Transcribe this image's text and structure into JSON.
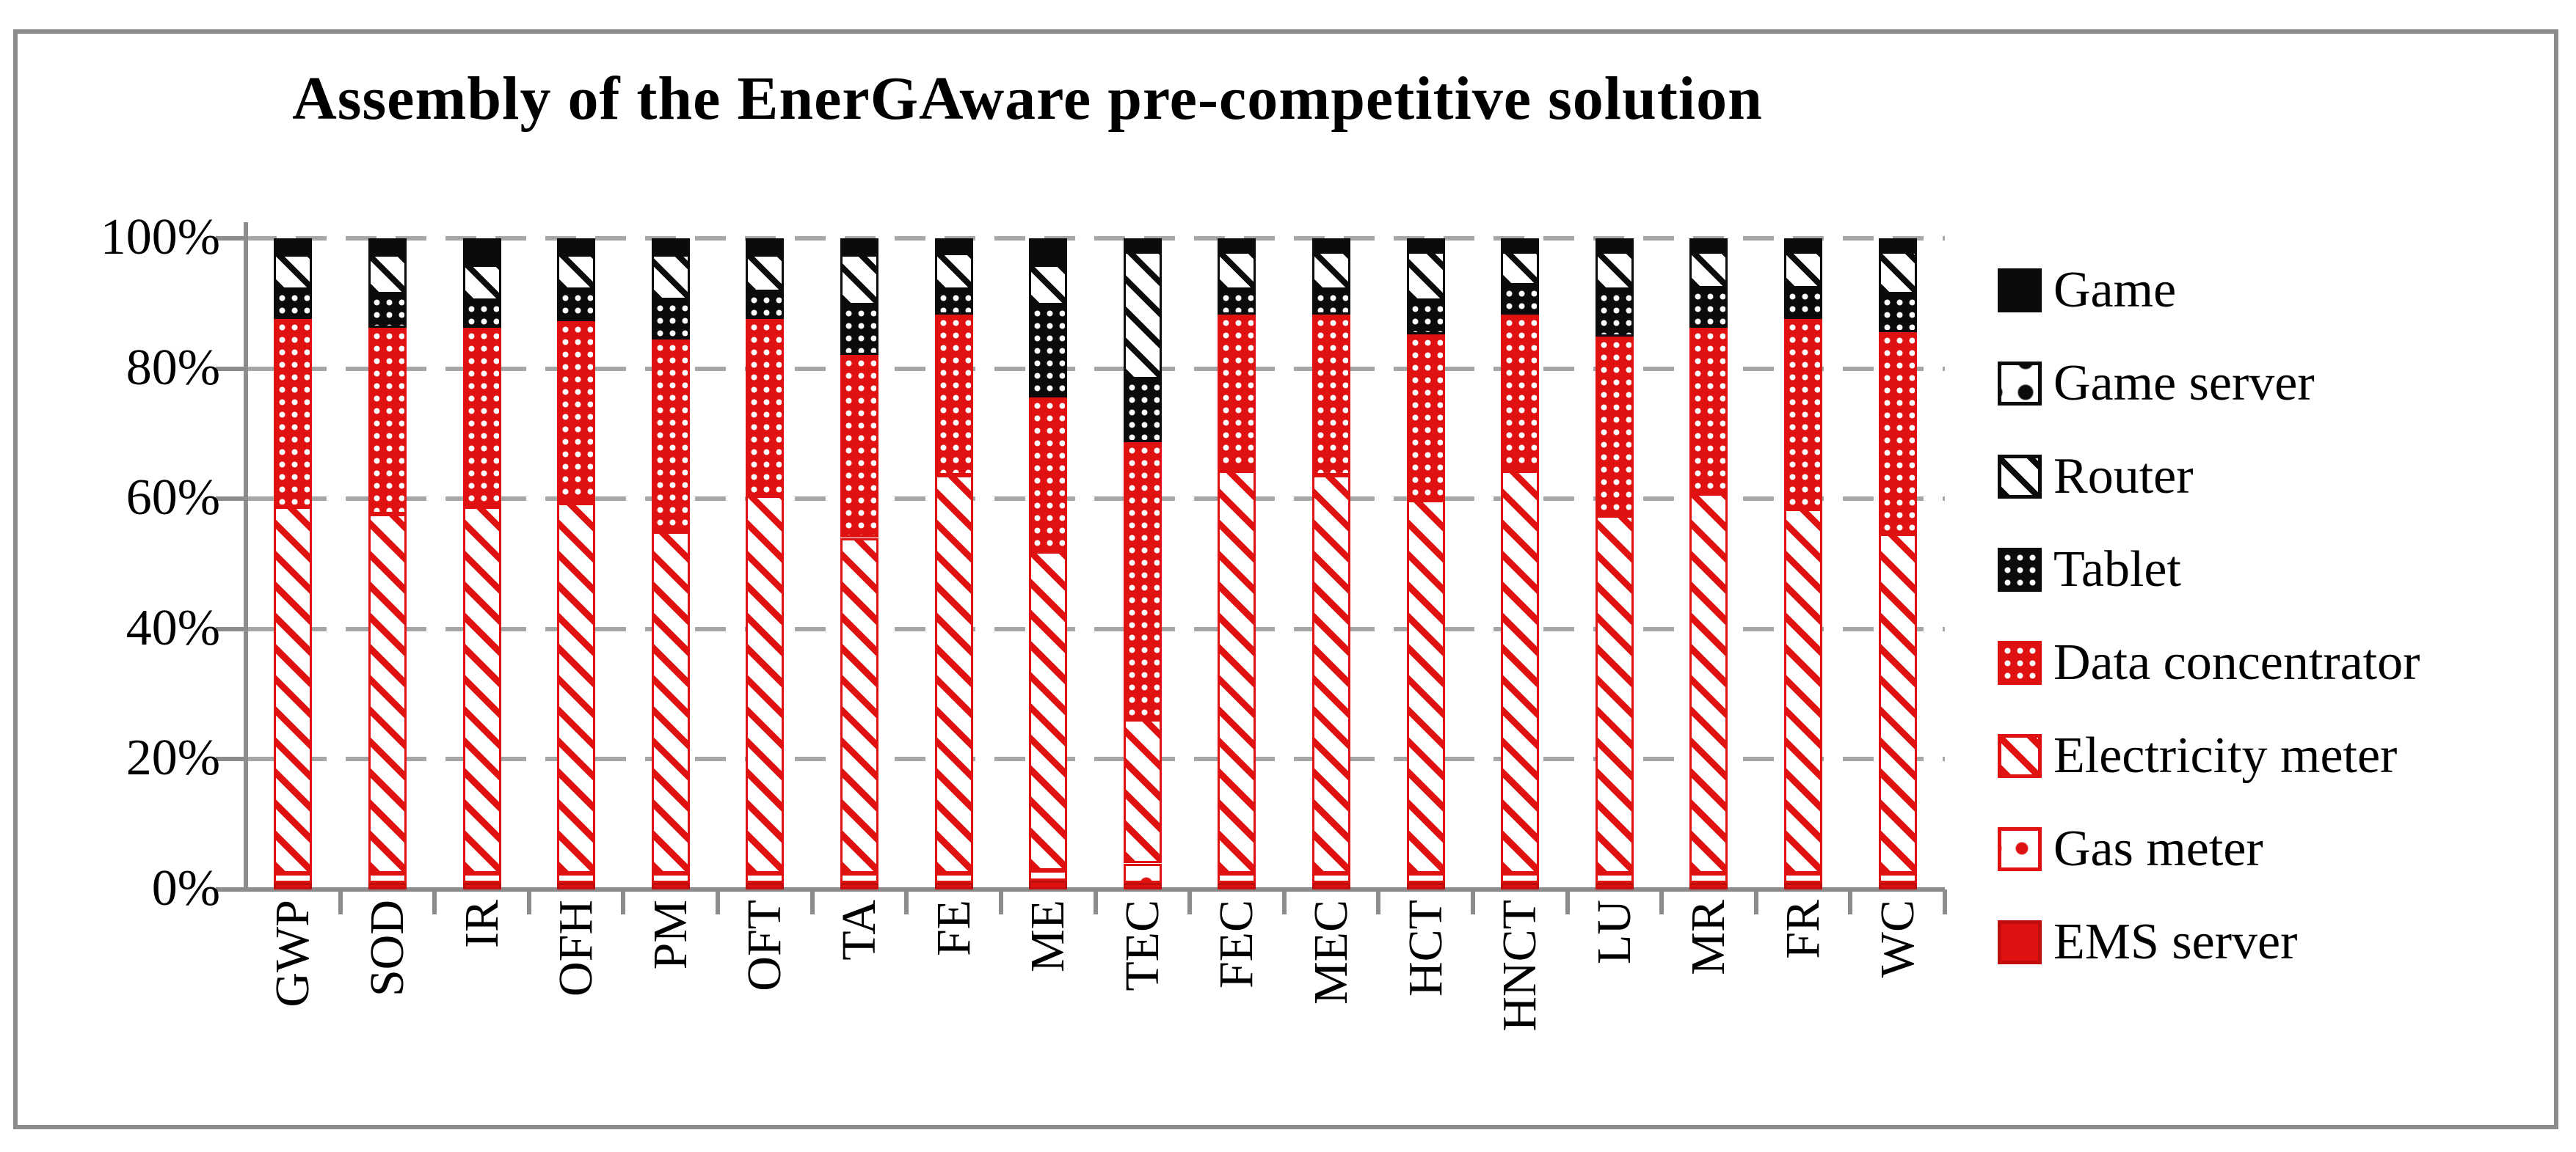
{
  "title": "Assembly of the EnerGAware pre-competitive solution",
  "colors": {
    "red": "#e01111",
    "black": "#0b0b0b",
    "gridline_gray": "#a6a6a6",
    "axis_gray": "#8c8c8c",
    "background": "#ffffff"
  },
  "y_axis": {
    "min": 0,
    "max": 100,
    "step": 20,
    "tick_labels": [
      "0%",
      "20%",
      "40%",
      "60%",
      "80%",
      "100%"
    ]
  },
  "legend": [
    {
      "label": "Game",
      "pattern": "solid-black"
    },
    {
      "label": "Game server",
      "pattern": "sparse-black"
    },
    {
      "label": "Router",
      "pattern": "diag-black"
    },
    {
      "label": "Tablet",
      "pattern": "dots-black"
    },
    {
      "label": "Data concentrator",
      "pattern": "dots-red"
    },
    {
      "label": "Electricity meter",
      "pattern": "diag-red"
    },
    {
      "label": "Gas meter",
      "pattern": "sparse-red"
    },
    {
      "label": "EMS server",
      "pattern": "solid-red"
    }
  ],
  "chart_data": {
    "type": "bar",
    "stacked": true,
    "units": "percent",
    "title": "Assembly of the EnerGAware pre-competitive solution",
    "xlabel": "",
    "ylabel": "",
    "ylim": [
      0,
      100
    ],
    "grid": "dashed-horizontal",
    "legend_position": "right",
    "categories": [
      "GWP",
      "SOD",
      "IR",
      "OFH",
      "PM",
      "OFT",
      "TA",
      "FE",
      "ME",
      "TEC",
      "FEC",
      "MEC",
      "HCT",
      "HNCT",
      "LU",
      "MR",
      "FR",
      "WC"
    ],
    "series": [
      {
        "name": "EMS server",
        "pattern": "solid-red",
        "values": [
          1,
          1,
          1,
          1,
          1,
          1,
          1,
          1,
          1.4,
          1,
          1,
          1,
          1,
          1,
          1,
          1,
          1,
          1
        ]
      },
      {
        "name": "Gas meter",
        "pattern": "sparse-red",
        "values": [
          1.5,
          1.5,
          1.5,
          1.5,
          1.5,
          1.5,
          1.5,
          1.5,
          1.5,
          3,
          1.5,
          1.5,
          1.5,
          1.5,
          1.5,
          1.5,
          1.5,
          1.5
        ]
      },
      {
        "name": "Electricity meter",
        "pattern": "diag-red",
        "values": [
          56.3,
          55.2,
          56.3,
          56.9,
          52.5,
          58.0,
          51.5,
          61.1,
          49.0,
          22.1,
          61.8,
          61.1,
          57.3,
          61.8,
          54.9,
          58.3,
          55.9,
          52.1
        ]
      },
      {
        "name": "Data concentrator",
        "pattern": "dots-red",
        "values": [
          28.8,
          28.6,
          27.5,
          27.9,
          29.5,
          27.1,
          28.1,
          24.7,
          23.7,
          42.6,
          24.0,
          24.7,
          25.4,
          24.0,
          27.5,
          25.5,
          29.2,
          31.0
        ]
      },
      {
        "name": "Tablet",
        "pattern": "dots-black",
        "values": [
          4.5,
          5.1,
          4.1,
          4.8,
          6.0,
          4.2,
          7.6,
          3.8,
          14.1,
          9.7,
          3.8,
          3.8,
          5.2,
          4.5,
          7.2,
          6.1,
          4.8,
          5.8
        ]
      },
      {
        "name": "Router",
        "pattern": "diag-black",
        "values": [
          5.4,
          6.1,
          5.6,
          5.4,
          7.0,
          5.7,
          7.8,
          5.7,
          6.3,
          19.6,
          5.9,
          5.9,
          7.6,
          5.2,
          5.9,
          5.6,
          5.6,
          6.6
        ]
      },
      {
        "name": "Game server",
        "pattern": "sparse-black",
        "values": [
          0.5,
          0.5,
          0.5,
          0.5,
          0.5,
          0.5,
          0.5,
          0.5,
          0.5,
          0.5,
          0.5,
          0.5,
          0.5,
          0.5,
          0.5,
          0.5,
          0.5,
          0.5
        ]
      },
      {
        "name": "Game",
        "pattern": "solid-black",
        "values": [
          2,
          2,
          3.5,
          2,
          2,
          2,
          2,
          1.7,
          3.5,
          1.5,
          1.5,
          1.5,
          1.5,
          1.5,
          1.5,
          1.5,
          1.5,
          1.5
        ]
      }
    ]
  }
}
